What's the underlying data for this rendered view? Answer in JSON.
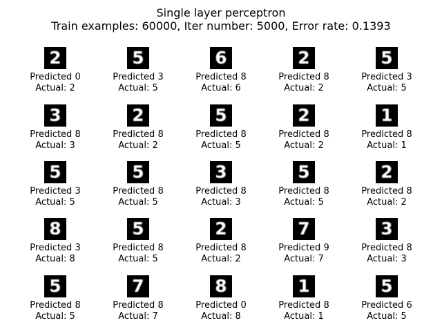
{
  "title": "Single layer perceptron",
  "subtitle": "Train examples: 60000, Iter number: 5000, Error rate: 0.1393",
  "samples": [
    {
      "digit_image": "2",
      "predicted": "Predicted 0",
      "actual": "Actual: 2"
    },
    {
      "digit_image": "5",
      "predicted": "Predicted 3",
      "actual": "Actual: 5"
    },
    {
      "digit_image": "6",
      "predicted": "Predicted 8",
      "actual": "Actual: 6"
    },
    {
      "digit_image": "2",
      "predicted": "Predicted 8",
      "actual": "Actual: 2"
    },
    {
      "digit_image": "5",
      "predicted": "Predicted 3",
      "actual": "Actual: 5"
    },
    {
      "digit_image": "3",
      "predicted": "Predicted 8",
      "actual": "Actual: 3"
    },
    {
      "digit_image": "2",
      "predicted": "Predicted 8",
      "actual": "Actual: 2"
    },
    {
      "digit_image": "5",
      "predicted": "Predicted 8",
      "actual": "Actual: 5"
    },
    {
      "digit_image": "2",
      "predicted": "Predicted 8",
      "actual": "Actual: 2"
    },
    {
      "digit_image": "1",
      "predicted": "Predicted 8",
      "actual": "Actual: 1"
    },
    {
      "digit_image": "5",
      "predicted": "Predicted 3",
      "actual": "Actual: 5"
    },
    {
      "digit_image": "5",
      "predicted": "Predicted 8",
      "actual": "Actual: 5"
    },
    {
      "digit_image": "3",
      "predicted": "Predicted 8",
      "actual": "Actual: 3"
    },
    {
      "digit_image": "5",
      "predicted": "Predicted 8",
      "actual": "Actual: 5"
    },
    {
      "digit_image": "2",
      "predicted": "Predicted 8",
      "actual": "Actual: 2"
    },
    {
      "digit_image": "8",
      "predicted": "Predicted 3",
      "actual": "Actual: 8"
    },
    {
      "digit_image": "5",
      "predicted": "Predicted 8",
      "actual": "Actual: 5"
    },
    {
      "digit_image": "2",
      "predicted": "Predicted 8",
      "actual": "Actual: 2"
    },
    {
      "digit_image": "7",
      "predicted": "Predicted 9",
      "actual": "Actual: 7"
    },
    {
      "digit_image": "3",
      "predicted": "Predicted 8",
      "actual": "Actual: 3"
    },
    {
      "digit_image": "5",
      "predicted": "Predicted 8",
      "actual": "Actual: 5"
    },
    {
      "digit_image": "7",
      "predicted": "Predicted 8",
      "actual": "Actual: 7"
    },
    {
      "digit_image": "8",
      "predicted": "Predicted 0",
      "actual": "Actual: 8"
    },
    {
      "digit_image": "1",
      "predicted": "Predicted 8",
      "actual": "Actual: 1"
    },
    {
      "digit_image": "5",
      "predicted": "Predicted 6",
      "actual": "Actual: 5"
    }
  ]
}
